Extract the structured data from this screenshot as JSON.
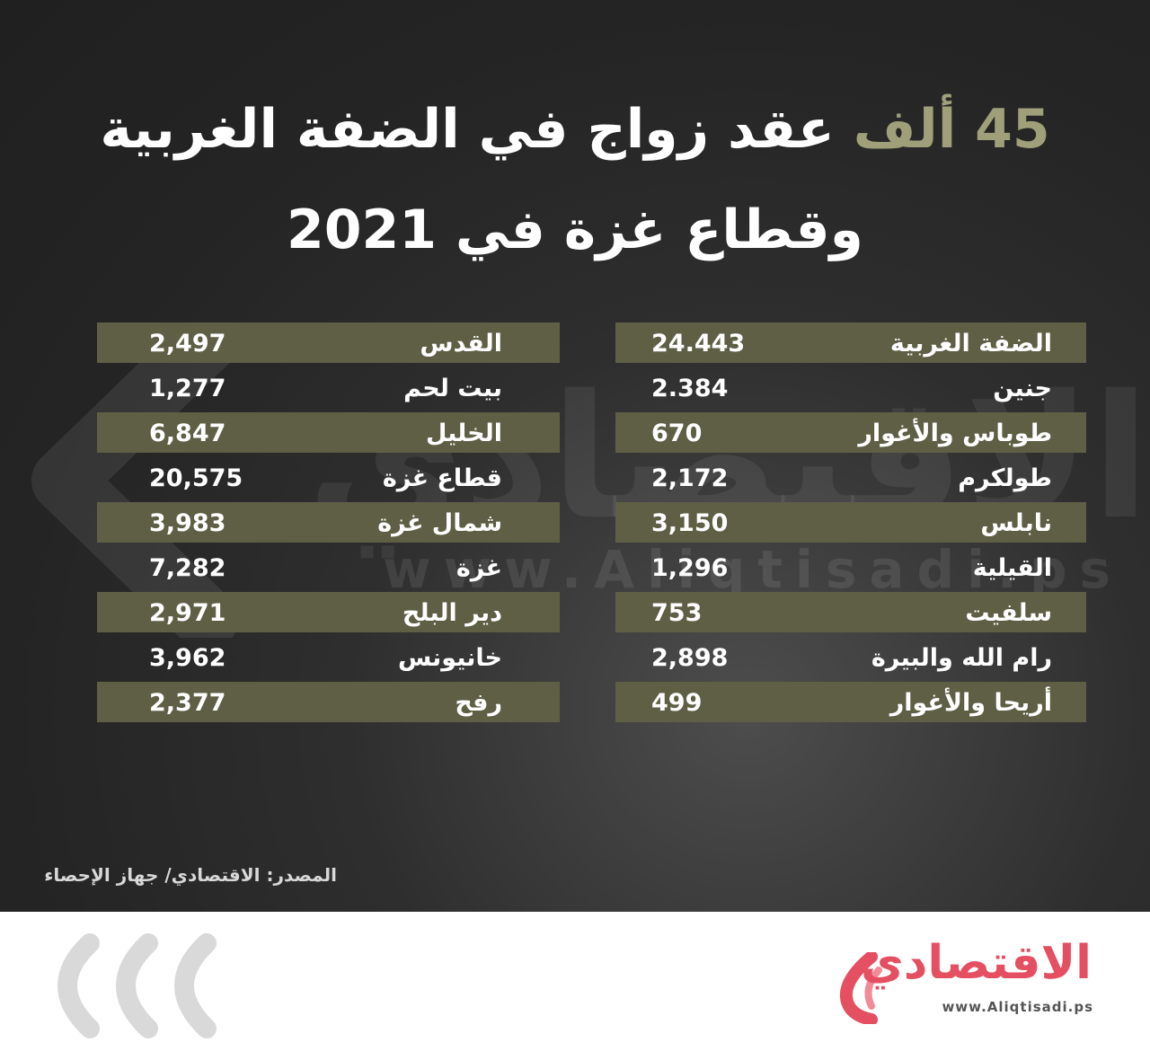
{
  "title": {
    "accent": "45 ألف",
    "line1_rest": "عقد زواج في الضفة الغربية",
    "line2": "وقطاع غزة في 2021"
  },
  "watermark": {
    "word": "الاقتصادي",
    "url": "www.Aliqtisadi.ps"
  },
  "west_bank": [
    {
      "name": "الضفة الغربية",
      "value": "24.443"
    },
    {
      "name": "جنين",
      "value": "2.384"
    },
    {
      "name": "طوباس والأغوار",
      "value": "670"
    },
    {
      "name": "طولكرم",
      "value": "2,172"
    },
    {
      "name": "نابلس",
      "value": "3,150"
    },
    {
      "name": "القيلية",
      "value": "1,296"
    },
    {
      "name": "سلفيت",
      "value": "753"
    },
    {
      "name": "رام الله والبيرة",
      "value": "2,898"
    },
    {
      "name": "أريحا والأغوار",
      "value": "499"
    }
  ],
  "other_regions": [
    {
      "name": "القدس",
      "value": "2,497"
    },
    {
      "name": "بيت لحم",
      "value": "1,277"
    },
    {
      "name": "الخليل",
      "value": "6,847"
    },
    {
      "name": "قطاع غزة",
      "value": "20,575"
    },
    {
      "name": "شمال غزة",
      "value": "3,983"
    },
    {
      "name": "غزة",
      "value": "7,282"
    },
    {
      "name": "دير البلح",
      "value": "2,971"
    },
    {
      "name": "خانيونس",
      "value": "3,962"
    },
    {
      "name": "رفح",
      "value": "2,377"
    }
  ],
  "source": "المصدر: الاقتصادي/ جهاز الإحصاء",
  "logo": {
    "name": "الاقتصادي",
    "url": "www.Aliqtisadi.ps"
  },
  "colors": {
    "accent": "#9fa07a",
    "row_band": "#5e5f45",
    "logo": "#e44f61"
  }
}
